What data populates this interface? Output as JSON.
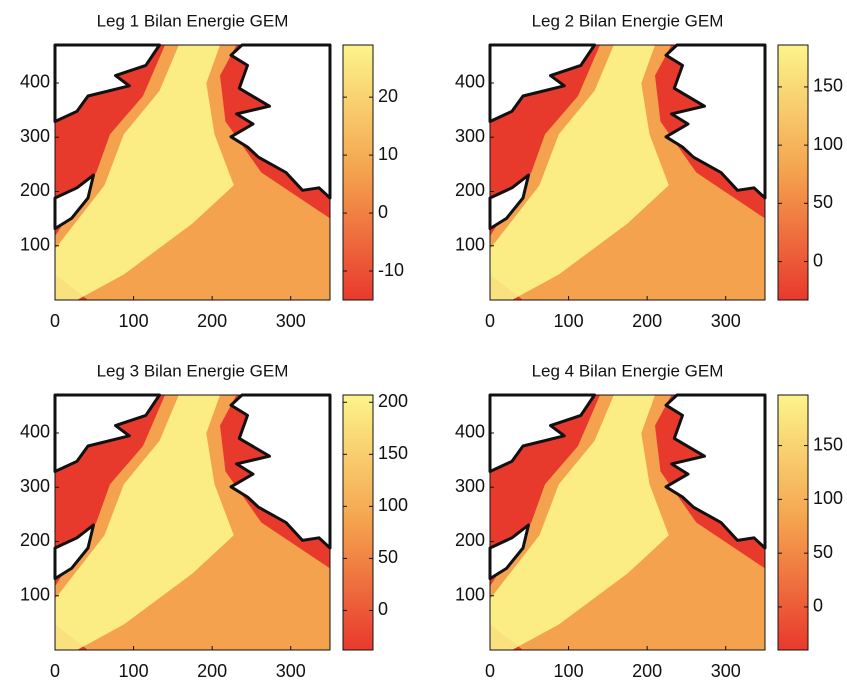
{
  "chart_data": [
    {
      "type": "heatmap",
      "title": "Leg 1 Bilan Energie GEM",
      "xlim": [
        0,
        350
      ],
      "xticks": [
        0,
        100,
        200,
        300
      ],
      "ylim": [
        0,
        470
      ],
      "yticks": [
        100,
        200,
        300,
        400
      ],
      "clim": [
        -15,
        29
      ],
      "cticks": [
        -10,
        0,
        10,
        20
      ],
      "colormap": [
        "#e8392d",
        "#f4a24e",
        "#fcf48a"
      ]
    },
    {
      "type": "heatmap",
      "title": "Leg 2 Bilan Energie GEM",
      "xlim": [
        0,
        350
      ],
      "xticks": [
        0,
        100,
        200,
        300
      ],
      "ylim": [
        0,
        470
      ],
      "yticks": [
        100,
        200,
        300,
        400
      ],
      "clim": [
        -33,
        186
      ],
      "cticks": [
        0,
        50,
        100,
        150
      ],
      "colormap": [
        "#e8392d",
        "#f4a24e",
        "#fcf48a"
      ]
    },
    {
      "type": "heatmap",
      "title": "Leg 3 Bilan Energie GEM",
      "xlim": [
        0,
        350
      ],
      "xticks": [
        0,
        100,
        200,
        300
      ],
      "ylim": [
        0,
        470
      ],
      "yticks": [
        100,
        200,
        300,
        400
      ],
      "clim": [
        -38,
        207
      ],
      "cticks": [
        0,
        50,
        100,
        150,
        200
      ],
      "colormap": [
        "#e8392d",
        "#f4a24e",
        "#fcf48a"
      ]
    },
    {
      "type": "heatmap",
      "title": "Leg 4 Bilan Energie GEM",
      "xlim": [
        0,
        350
      ],
      "xticks": [
        0,
        100,
        200,
        300
      ],
      "ylim": [
        0,
        470
      ],
      "yticks": [
        100,
        200,
        300,
        400
      ],
      "clim": [
        -40,
        197
      ],
      "cticks": [
        0,
        50,
        100,
        150
      ],
      "colormap": [
        "#e8392d",
        "#f4a24e",
        "#fcf48a"
      ]
    }
  ]
}
